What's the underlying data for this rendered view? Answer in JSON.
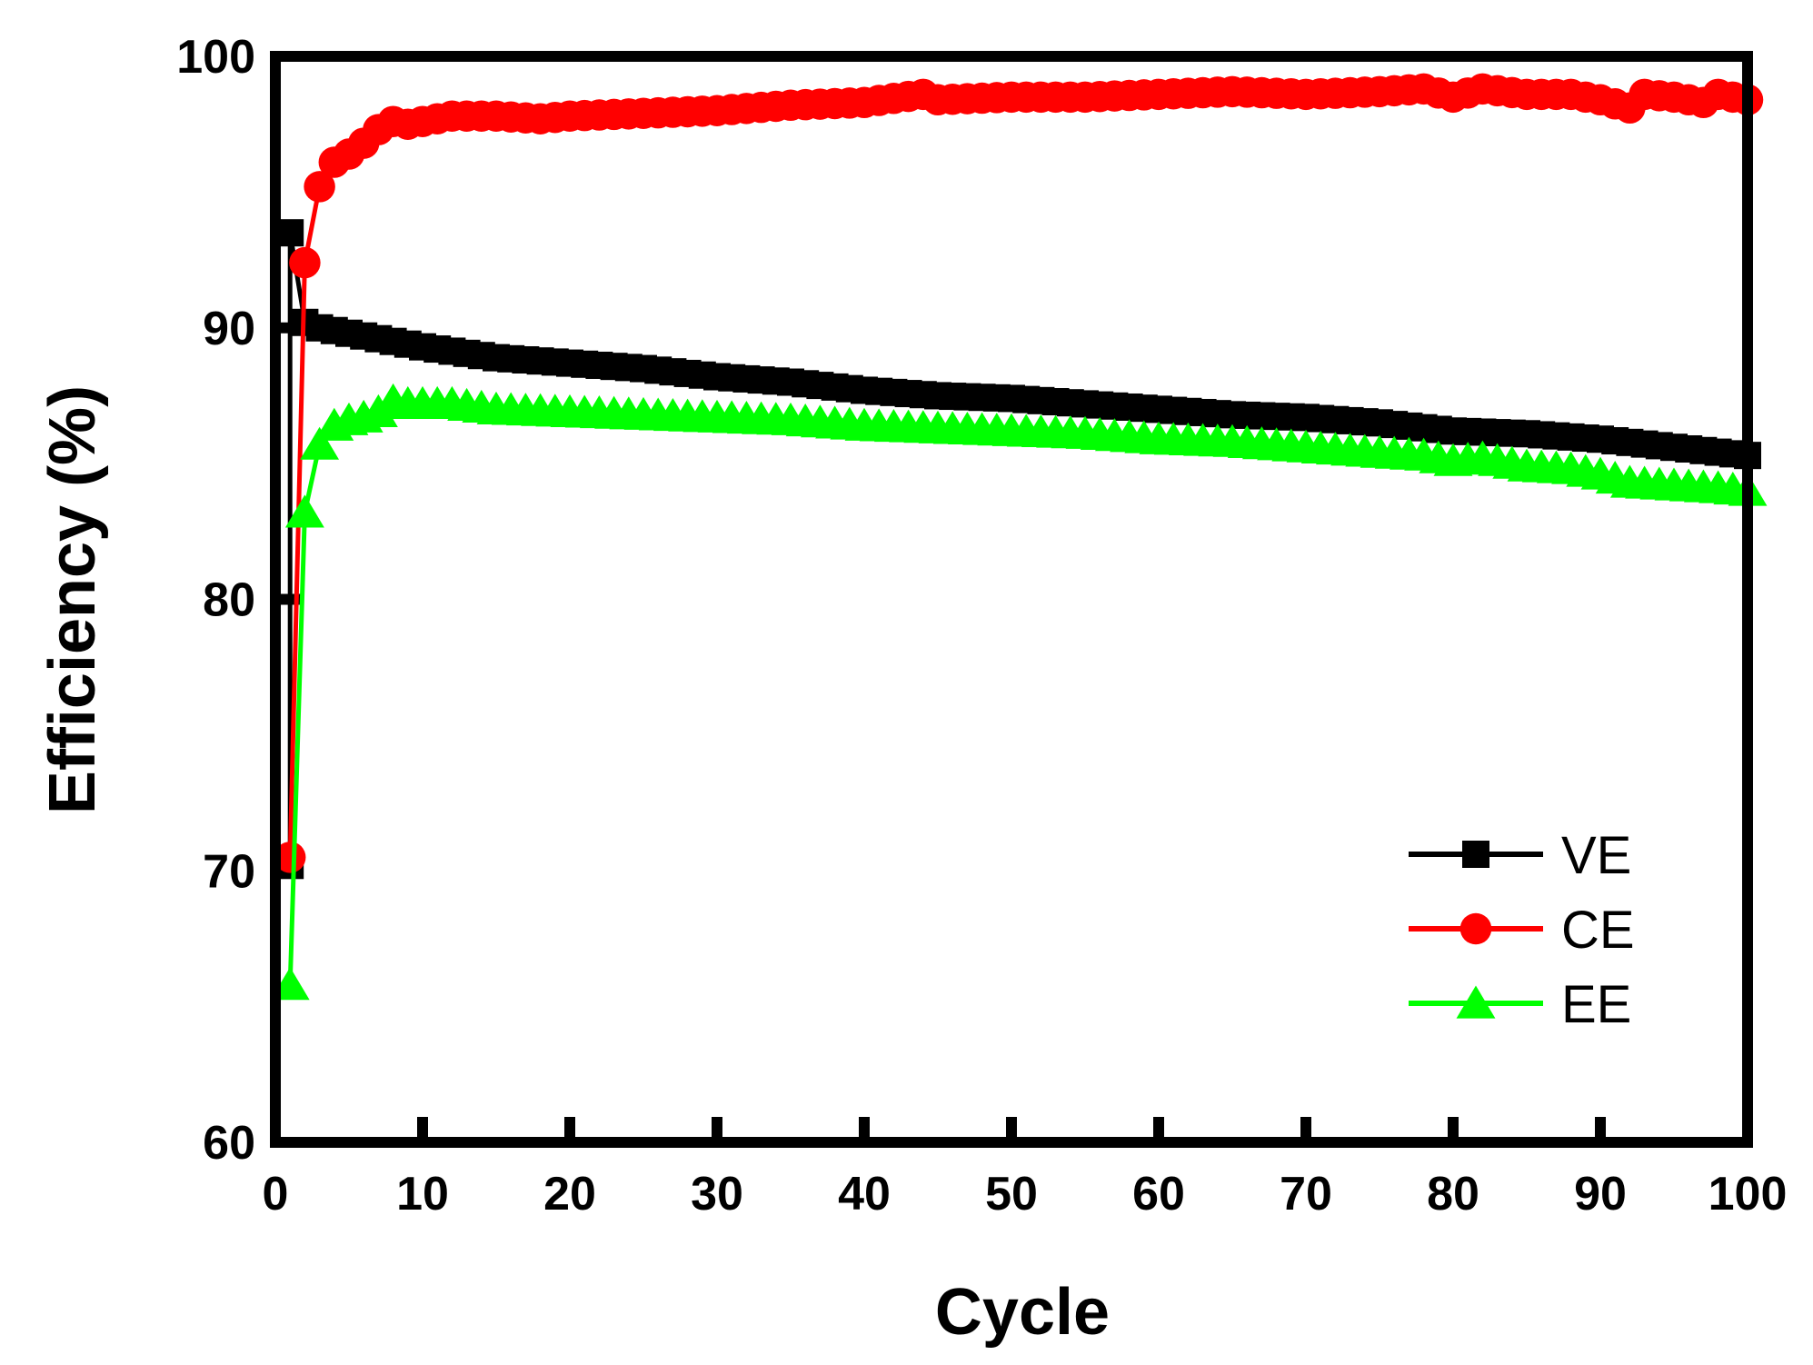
{
  "chart_data": {
    "type": "line",
    "xlabel": "Cycle",
    "ylabel": "Efficiency (%)",
    "xlim": [
      0,
      100
    ],
    "ylim": [
      60,
      100
    ],
    "xticks": [
      0,
      10,
      20,
      30,
      40,
      50,
      60,
      70,
      80,
      90,
      100
    ],
    "yticks": [
      60,
      70,
      80,
      90,
      100
    ],
    "legend_position": "bottom-right",
    "series": [
      {
        "name": "VE",
        "color": "#000000",
        "marker": "square",
        "values": [
          [
            1,
            70.2
          ],
          [
            1,
            93.5
          ],
          [
            2,
            90.2
          ],
          [
            3,
            90.0
          ],
          [
            4,
            89.9
          ],
          [
            5,
            89.8
          ],
          [
            6,
            89.7
          ],
          [
            7,
            89.6
          ],
          [
            8,
            89.5
          ],
          [
            9,
            89.4
          ],
          [
            10,
            89.3
          ],
          [
            15,
            88.9
          ],
          [
            20,
            88.7
          ],
          [
            25,
            88.5
          ],
          [
            30,
            88.2
          ],
          [
            35,
            88.0
          ],
          [
            40,
            87.7
          ],
          [
            45,
            87.5
          ],
          [
            50,
            87.4
          ],
          [
            55,
            87.2
          ],
          [
            60,
            87.0
          ],
          [
            65,
            86.8
          ],
          [
            70,
            86.7
          ],
          [
            75,
            86.5
          ],
          [
            80,
            86.2
          ],
          [
            85,
            86.1
          ],
          [
            90,
            85.9
          ],
          [
            95,
            85.6
          ],
          [
            100,
            85.3
          ]
        ]
      },
      {
        "name": "CE",
        "color": "#ff0000",
        "marker": "circle",
        "values": [
          [
            1,
            70.5
          ],
          [
            2,
            92.4
          ],
          [
            3,
            95.2
          ],
          [
            4,
            96.1
          ],
          [
            5,
            96.4
          ],
          [
            6,
            96.8
          ],
          [
            7,
            97.3
          ],
          [
            8,
            97.6
          ],
          [
            9,
            97.5
          ],
          [
            10,
            97.6
          ],
          [
            12,
            97.8
          ],
          [
            15,
            97.8
          ],
          [
            18,
            97.7
          ],
          [
            20,
            97.8
          ],
          [
            25,
            97.9
          ],
          [
            30,
            98.0
          ],
          [
            35,
            98.2
          ],
          [
            40,
            98.3
          ],
          [
            44,
            98.6
          ],
          [
            45,
            98.4
          ],
          [
            50,
            98.5
          ],
          [
            55,
            98.5
          ],
          [
            60,
            98.6
          ],
          [
            65,
            98.7
          ],
          [
            70,
            98.6
          ],
          [
            75,
            98.7
          ],
          [
            78,
            98.8
          ],
          [
            80,
            98.5
          ],
          [
            82,
            98.8
          ],
          [
            85,
            98.6
          ],
          [
            88,
            98.6
          ],
          [
            90,
            98.4
          ],
          [
            92,
            98.1
          ],
          [
            93,
            98.6
          ],
          [
            95,
            98.5
          ],
          [
            97,
            98.3
          ],
          [
            98,
            98.6
          ],
          [
            100,
            98.4
          ]
        ]
      },
      {
        "name": "EE",
        "color": "#00ff00",
        "marker": "triangle",
        "values": [
          [
            1,
            65.8
          ],
          [
            2,
            83.2
          ],
          [
            3,
            85.7
          ],
          [
            4,
            86.4
          ],
          [
            5,
            86.6
          ],
          [
            6,
            86.7
          ],
          [
            7,
            86.9
          ],
          [
            8,
            87.3
          ],
          [
            9,
            87.2
          ],
          [
            10,
            87.2
          ],
          [
            12,
            87.2
          ],
          [
            15,
            87.0
          ],
          [
            20,
            86.9
          ],
          [
            25,
            86.8
          ],
          [
            30,
            86.7
          ],
          [
            35,
            86.6
          ],
          [
            40,
            86.4
          ],
          [
            45,
            86.3
          ],
          [
            50,
            86.2
          ],
          [
            55,
            86.1
          ],
          [
            60,
            85.9
          ],
          [
            65,
            85.8
          ],
          [
            70,
            85.6
          ],
          [
            75,
            85.4
          ],
          [
            78,
            85.3
          ],
          [
            80,
            85.1
          ],
          [
            82,
            85.2
          ],
          [
            85,
            84.9
          ],
          [
            88,
            84.8
          ],
          [
            90,
            84.6
          ],
          [
            92,
            84.3
          ],
          [
            95,
            84.2
          ],
          [
            98,
            84.1
          ],
          [
            100,
            84.0
          ]
        ]
      }
    ]
  }
}
